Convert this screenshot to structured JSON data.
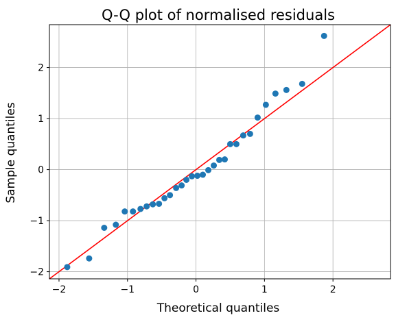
{
  "chart_data": {
    "type": "scatter",
    "title": "Q-Q plot of normalised residuals",
    "xlabel": "Theoretical quantiles",
    "ylabel": "Sample quantiles",
    "xlim": [
      -2.14,
      2.84
    ],
    "ylim": [
      -2.14,
      2.84
    ],
    "xticks": [
      -2,
      -1,
      0,
      1,
      2
    ],
    "yticks": [
      -2,
      -1,
      0,
      1,
      2
    ],
    "xtick_labels": [
      "−2",
      "−1",
      "0",
      "1",
      "2"
    ],
    "ytick_labels": [
      "−2",
      "−1",
      "0",
      "1",
      "2"
    ],
    "grid": true,
    "point_color": "#1f77b4",
    "line_color": "#ff0000",
    "reference_line": {
      "slope": 1,
      "intercept": 0
    },
    "points": [
      {
        "x": -1.88,
        "y": -1.91
      },
      {
        "x": -1.56,
        "y": -1.74
      },
      {
        "x": -1.34,
        "y": -1.14
      },
      {
        "x": -1.17,
        "y": -1.08
      },
      {
        "x": -1.04,
        "y": -0.82
      },
      {
        "x": -0.92,
        "y": -0.82
      },
      {
        "x": -0.81,
        "y": -0.77
      },
      {
        "x": -0.72,
        "y": -0.72
      },
      {
        "x": -0.63,
        "y": -0.68
      },
      {
        "x": -0.54,
        "y": -0.67
      },
      {
        "x": -0.46,
        "y": -0.56
      },
      {
        "x": -0.38,
        "y": -0.5
      },
      {
        "x": -0.29,
        "y": -0.36
      },
      {
        "x": -0.21,
        "y": -0.31
      },
      {
        "x": -0.14,
        "y": -0.2
      },
      {
        "x": -0.06,
        "y": -0.13
      },
      {
        "x": 0.02,
        "y": -0.12
      },
      {
        "x": 0.1,
        "y": -0.1
      },
      {
        "x": 0.18,
        "y": -0.01
      },
      {
        "x": 0.26,
        "y": 0.08
      },
      {
        "x": 0.34,
        "y": 0.19
      },
      {
        "x": 0.42,
        "y": 0.2
      },
      {
        "x": 0.5,
        "y": 0.5
      },
      {
        "x": 0.59,
        "y": 0.5
      },
      {
        "x": 0.69,
        "y": 0.67
      },
      {
        "x": 0.79,
        "y": 0.7
      },
      {
        "x": 0.9,
        "y": 1.02
      },
      {
        "x": 1.02,
        "y": 1.27
      },
      {
        "x": 1.16,
        "y": 1.49
      },
      {
        "x": 1.32,
        "y": 1.56
      },
      {
        "x": 1.55,
        "y": 1.68
      },
      {
        "x": 1.87,
        "y": 2.62
      }
    ]
  }
}
